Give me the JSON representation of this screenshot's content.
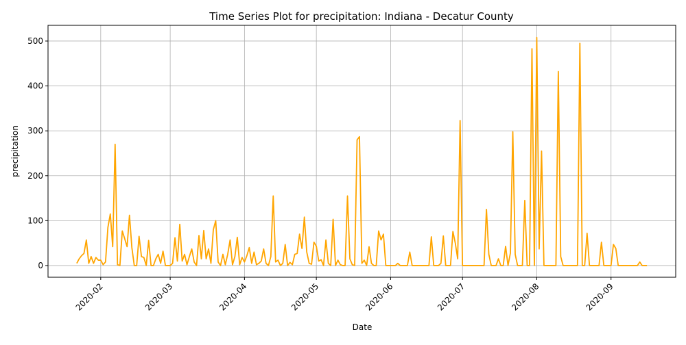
{
  "chart_data": {
    "type": "line",
    "title": "Time Series Plot for precipitation: Indiana - Decatur County",
    "xlabel": "Date",
    "ylabel": "precipitation",
    "color": "#ffa500",
    "grid": true,
    "xlim": [
      "2020-01-10",
      "2020-09-28"
    ],
    "xticks": [
      {
        "value": "2020-02-01",
        "label": "2020-02"
      },
      {
        "value": "2020-03-01",
        "label": "2020-03"
      },
      {
        "value": "2020-04-01",
        "label": "2020-04"
      },
      {
        "value": "2020-05-01",
        "label": "2020-05"
      },
      {
        "value": "2020-06-01",
        "label": "2020-06"
      },
      {
        "value": "2020-07-01",
        "label": "2020-07"
      },
      {
        "value": "2020-08-01",
        "label": "2020-08"
      },
      {
        "value": "2020-09-01",
        "label": "2020-09"
      }
    ],
    "ylim": [
      -26,
      535
    ],
    "yticks": [
      0,
      100,
      200,
      300,
      400,
      500
    ],
    "x": [
      "2020-01-22",
      "2020-01-23",
      "2020-01-24",
      "2020-01-25",
      "2020-01-26",
      "2020-01-27",
      "2020-01-28",
      "2020-01-29",
      "2020-01-30",
      "2020-01-31",
      "2020-02-01",
      "2020-02-02",
      "2020-02-03",
      "2020-02-04",
      "2020-02-05",
      "2020-02-06",
      "2020-02-07",
      "2020-02-08",
      "2020-02-09",
      "2020-02-10",
      "2020-02-11",
      "2020-02-12",
      "2020-02-13",
      "2020-02-14",
      "2020-02-15",
      "2020-02-16",
      "2020-02-17",
      "2020-02-18",
      "2020-02-19",
      "2020-02-20",
      "2020-02-21",
      "2020-02-22",
      "2020-02-23",
      "2020-02-24",
      "2020-02-25",
      "2020-02-26",
      "2020-02-27",
      "2020-02-28",
      "2020-02-29",
      "2020-03-01",
      "2020-03-02",
      "2020-03-03",
      "2020-03-04",
      "2020-03-05",
      "2020-03-06",
      "2020-03-07",
      "2020-03-08",
      "2020-03-09",
      "2020-03-10",
      "2020-03-11",
      "2020-03-12",
      "2020-03-13",
      "2020-03-14",
      "2020-03-15",
      "2020-03-16",
      "2020-03-17",
      "2020-03-18",
      "2020-03-19",
      "2020-03-20",
      "2020-03-21",
      "2020-03-22",
      "2020-03-23",
      "2020-03-24",
      "2020-03-25",
      "2020-03-26",
      "2020-03-27",
      "2020-03-28",
      "2020-03-29",
      "2020-03-30",
      "2020-03-31",
      "2020-04-01",
      "2020-04-02",
      "2020-04-03",
      "2020-04-04",
      "2020-04-05",
      "2020-04-06",
      "2020-04-07",
      "2020-04-08",
      "2020-04-09",
      "2020-04-10",
      "2020-04-11",
      "2020-04-12",
      "2020-04-13",
      "2020-04-14",
      "2020-04-15",
      "2020-04-16",
      "2020-04-17",
      "2020-04-18",
      "2020-04-19",
      "2020-04-20",
      "2020-04-21",
      "2020-04-22",
      "2020-04-23",
      "2020-04-24",
      "2020-04-25",
      "2020-04-26",
      "2020-04-27",
      "2020-04-28",
      "2020-04-29",
      "2020-04-30",
      "2020-05-01",
      "2020-05-02",
      "2020-05-03",
      "2020-05-04",
      "2020-05-05",
      "2020-05-06",
      "2020-05-07",
      "2020-05-08",
      "2020-05-09",
      "2020-05-10",
      "2020-05-11",
      "2020-05-12",
      "2020-05-13",
      "2020-05-14",
      "2020-05-15",
      "2020-05-16",
      "2020-05-17",
      "2020-05-18",
      "2020-05-19",
      "2020-05-20",
      "2020-05-21",
      "2020-05-22",
      "2020-05-23",
      "2020-05-24",
      "2020-05-25",
      "2020-05-26",
      "2020-05-27",
      "2020-05-28",
      "2020-05-29",
      "2020-05-30",
      "2020-06-03",
      "2020-06-04",
      "2020-06-05",
      "2020-06-08",
      "2020-06-09",
      "2020-06-10",
      "2020-06-17",
      "2020-06-18",
      "2020-06-19",
      "2020-06-21",
      "2020-06-22",
      "2020-06-23",
      "2020-06-24",
      "2020-06-26",
      "2020-06-27",
      "2020-06-28",
      "2020-06-29",
      "2020-06-30",
      "2020-07-01",
      "2020-07-10",
      "2020-07-11",
      "2020-07-12",
      "2020-07-13",
      "2020-07-15",
      "2020-07-16",
      "2020-07-17",
      "2020-07-18",
      "2020-07-19",
      "2020-07-20",
      "2020-07-21",
      "2020-07-22",
      "2020-07-23",
      "2020-07-24",
      "2020-07-26",
      "2020-07-27",
      "2020-07-28",
      "2020-07-29",
      "2020-07-30",
      "2020-07-31",
      "2020-08-01",
      "2020-08-02",
      "2020-08-03",
      "2020-08-04",
      "2020-08-09",
      "2020-08-10",
      "2020-08-11",
      "2020-08-12",
      "2020-08-18",
      "2020-08-19",
      "2020-08-20",
      "2020-08-21",
      "2020-08-22",
      "2020-08-23",
      "2020-08-27",
      "2020-08-28",
      "2020-08-29",
      "2020-09-01",
      "2020-09-02",
      "2020-09-03",
      "2020-09-04",
      "2020-09-12",
      "2020-09-13",
      "2020-09-14",
      "2020-09-16"
    ],
    "values": [
      5,
      15,
      22,
      27,
      57,
      5,
      20,
      5,
      18,
      12,
      12,
      2,
      8,
      85,
      115,
      42,
      270,
      2,
      0,
      77,
      60,
      42,
      112,
      40,
      0,
      0,
      65,
      20,
      18,
      0,
      56,
      0,
      0,
      15,
      25,
      5,
      32,
      0,
      0,
      0,
      5,
      62,
      10,
      92,
      10,
      25,
      2,
      20,
      37,
      8,
      0,
      67,
      15,
      78,
      15,
      37,
      5,
      80,
      100,
      8,
      0,
      25,
      2,
      25,
      57,
      2,
      20,
      63,
      2,
      18,
      8,
      22,
      40,
      5,
      30,
      2,
      5,
      10,
      37,
      5,
      0,
      20,
      155,
      8,
      12,
      0,
      5,
      47,
      0,
      7,
      2,
      25,
      27,
      70,
      38,
      108,
      30,
      5,
      3,
      52,
      43,
      10,
      13,
      0,
      57,
      5,
      0,
      103,
      0,
      12,
      2,
      0,
      0,
      155,
      15,
      2,
      0,
      280,
      287,
      5,
      12,
      0,
      42,
      5,
      0,
      0,
      77,
      57,
      70,
      0,
      0,
      5,
      0,
      0,
      30,
      0,
      0,
      64,
      0,
      0,
      5,
      66,
      0,
      0,
      76,
      50,
      15,
      323,
      0,
      0,
      125,
      25,
      0,
      0,
      15,
      0,
      0,
      43,
      0,
      28,
      298,
      25,
      0,
      0,
      145,
      0,
      0,
      483,
      0,
      508,
      37,
      255,
      0,
      0,
      432,
      20,
      0,
      0,
      495,
      0,
      0,
      72,
      0,
      0,
      52,
      0,
      0,
      47,
      38,
      0,
      0,
      8,
      0,
      0
    ]
  }
}
